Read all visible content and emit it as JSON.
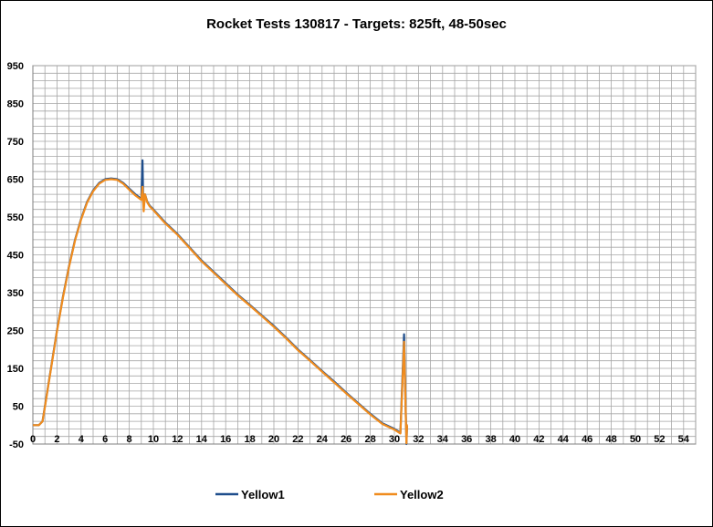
{
  "chart_data": {
    "type": "line",
    "title": "Rocket Tests 130817 - Targets: 825ft, 48-50sec",
    "xlabel": "",
    "ylabel": "",
    "xlim": [
      0,
      55
    ],
    "ylim": [
      -50,
      950
    ],
    "xticks": [
      0,
      2,
      4,
      6,
      8,
      10,
      12,
      14,
      16,
      18,
      20,
      22,
      24,
      26,
      28,
      30,
      32,
      34,
      36,
      38,
      40,
      42,
      44,
      46,
      48,
      50,
      52,
      54
    ],
    "yticks": [
      -50,
      50,
      150,
      250,
      350,
      450,
      550,
      650,
      750,
      850,
      950
    ],
    "grid": true,
    "legend_position": "bottom",
    "series": [
      {
        "name": "Yellow1",
        "color": "#1f4e8c",
        "x": [
          0,
          0.5,
          0.8,
          1.0,
          1.5,
          2.0,
          2.5,
          3.0,
          3.5,
          4.0,
          4.5,
          5.0,
          5.5,
          6.0,
          6.5,
          7.0,
          7.5,
          8.0,
          8.5,
          9.0,
          9.1,
          9.15,
          9.3,
          9.5,
          9.7,
          10.0,
          11.0,
          12.0,
          13.0,
          14.0,
          15.0,
          16.0,
          17.0,
          18.0,
          19.0,
          20.0,
          21.0,
          22.0,
          23.0,
          24.0,
          25.0,
          26.0,
          27.0,
          28.0,
          29.0,
          30.0,
          30.5,
          30.8,
          31.0,
          31.05,
          31.1
        ],
        "y": [
          0,
          0,
          10,
          50,
          150,
          250,
          340,
          420,
          490,
          545,
          590,
          620,
          640,
          650,
          652,
          650,
          640,
          625,
          610,
          598,
          700,
          600,
          610,
          590,
          580,
          570,
          535,
          505,
          470,
          435,
          405,
          375,
          345,
          318,
          290,
          262,
          232,
          200,
          172,
          143,
          115,
          86,
          58,
          30,
          5,
          -10,
          -20,
          240,
          -50,
          0,
          0
        ]
      },
      {
        "name": "Yellow2",
        "color": "#f08c1e",
        "x": [
          0,
          0.5,
          0.8,
          1.0,
          1.5,
          2.0,
          2.5,
          3.0,
          3.5,
          4.0,
          4.5,
          5.0,
          5.5,
          6.0,
          6.5,
          7.0,
          7.5,
          8.0,
          8.5,
          9.0,
          9.1,
          9.2,
          9.3,
          9.5,
          9.7,
          10.0,
          11.0,
          12.0,
          13.0,
          14.0,
          15.0,
          16.0,
          17.0,
          18.0,
          19.0,
          20.0,
          21.0,
          22.0,
          23.0,
          24.0,
          25.0,
          26.0,
          27.0,
          28.0,
          29.0,
          30.0,
          30.5,
          30.8,
          31.0,
          31.05,
          31.1
        ],
        "y": [
          0,
          0,
          10,
          48,
          148,
          248,
          338,
          418,
          488,
          543,
          588,
          618,
          638,
          648,
          650,
          648,
          638,
          622,
          607,
          595,
          630,
          565,
          610,
          588,
          578,
          568,
          533,
          503,
          468,
          433,
          403,
          373,
          343,
          316,
          288,
          260,
          230,
          198,
          170,
          141,
          113,
          84,
          56,
          28,
          3,
          -12,
          -22,
          220,
          -48,
          0,
          0
        ]
      }
    ]
  }
}
